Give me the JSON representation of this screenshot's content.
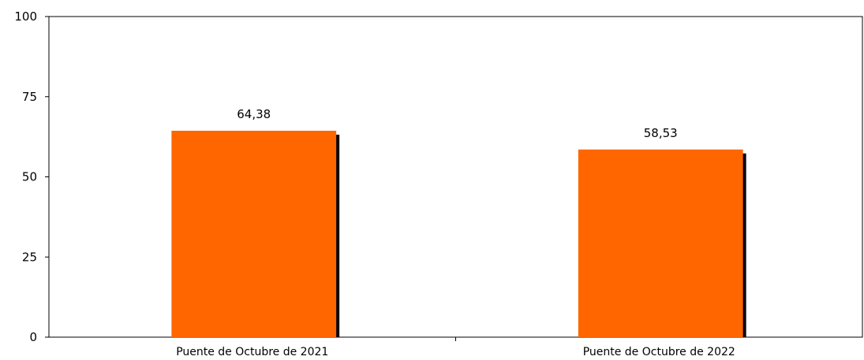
{
  "chart_data": {
    "type": "bar",
    "title": "",
    "xlabel": "",
    "ylabel": "",
    "categories": [
      "Puente de Octubre de 2021",
      "Puente de Octubre de 2022"
    ],
    "values": [
      64.38,
      58.53
    ],
    "value_labels": [
      "64,38",
      "58,53"
    ],
    "ylim": [
      0,
      100
    ],
    "yticks": [
      0,
      25,
      50,
      75,
      100
    ],
    "ytick_labels": [
      "0",
      "25",
      "50",
      "75",
      "100"
    ],
    "grid": false,
    "legend": "none",
    "colors": {
      "bar": "#ff6600",
      "shadow": "#000000",
      "axis": "#000000"
    }
  }
}
